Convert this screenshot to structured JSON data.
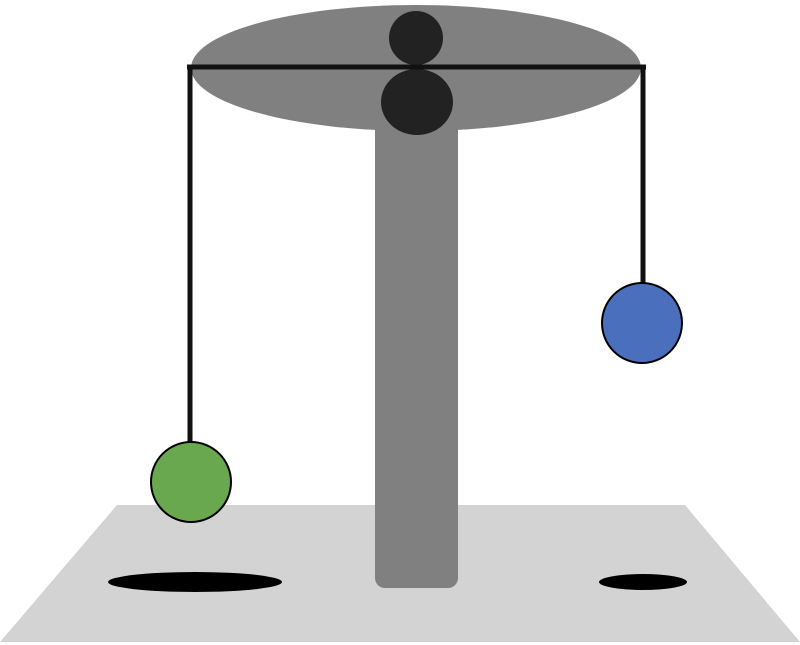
{
  "colors": {
    "background": "#ffffff",
    "floor": "#d3d3d3",
    "pole": "#808080",
    "disc": "#808080",
    "pivot": "#222222",
    "beam": "#111111",
    "string": "#111111",
    "shadow": "#000000",
    "left_ball": "#6aa84f",
    "right_ball": "#4a6fbd",
    "ball_outline": "#000000"
  },
  "objects": {
    "left_ball": {
      "color_name": "green"
    },
    "right_ball": {
      "color_name": "blue"
    }
  }
}
